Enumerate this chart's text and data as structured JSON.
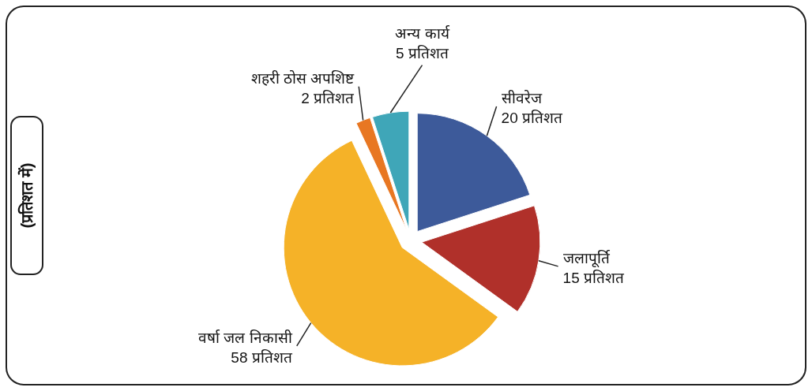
{
  "chart_data": {
    "type": "pie",
    "categories": [
      "सीवरेज",
      "जलापूर्ति",
      "वर्षा जल निकासी",
      "शहरी ठोस अपशिष्ट",
      "अन्य कार्य"
    ],
    "values": [
      20,
      15,
      58,
      2,
      5
    ],
    "value_labels": [
      "20 प्रतिशत",
      "15 प्रतिशत",
      "58 प्रतिशत",
      "2 प्रतिशत",
      "5 प्रतिशत"
    ],
    "colors": [
      "#3d5a9a",
      "#b0302a",
      "#f5b228",
      "#e87722",
      "#3fa6b8"
    ],
    "annotations": [
      "(प्रतिशत में)"
    ]
  }
}
